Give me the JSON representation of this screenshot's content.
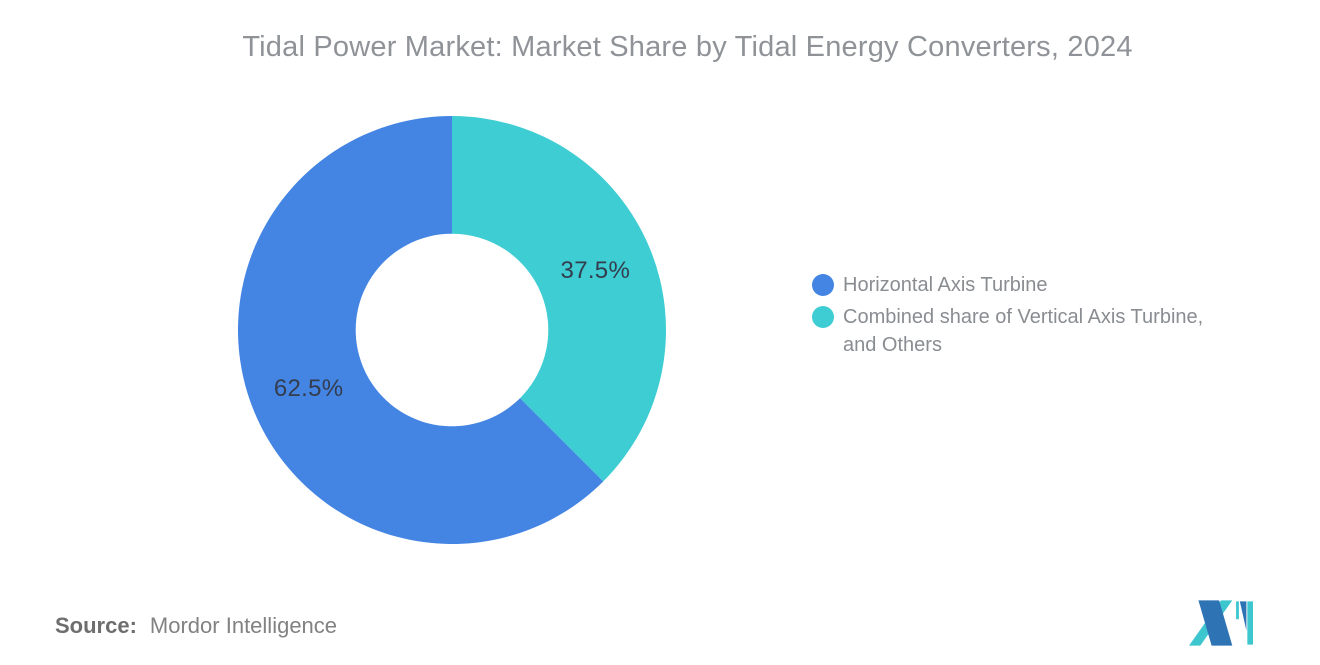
{
  "title": "Tidal Power Market: Market Share by Tidal Energy Converters, 2024",
  "chart_data": {
    "type": "pie",
    "subtype": "donut",
    "title": "Tidal Power Market: Market Share by Tidal Energy Converters, 2024",
    "labels": [
      "Horizontal Axis Turbine",
      "Combined share of Vertical Axis Turbine, and Others"
    ],
    "values": [
      62.5,
      37.5
    ],
    "data_labels": [
      "62.5%",
      "37.5%"
    ],
    "colors": [
      "#4485e4",
      "#3dcdd3"
    ],
    "start_angle_deg": 0,
    "direction": "counterclockwise",
    "inner_radius_ratio": 0.45,
    "legend_position": "right",
    "data_label_color": "#333d4d"
  },
  "legend": {
    "items": [
      {
        "name": "horizontal-axis-turbine",
        "color": "#4485e4",
        "lines": [
          "Horizontal Axis Turbine"
        ]
      },
      {
        "name": "combined-share-vertical-axis-turbine-and-others",
        "color": "#3dcdd3",
        "lines": [
          "Combined share of Vertical Axis Turbine,",
          "and Others"
        ]
      }
    ]
  },
  "source": {
    "label": "Source:",
    "value": "Mordor Intelligence"
  },
  "logo": {
    "name": "Mordor Intelligence logo",
    "blue": "#2e74b5",
    "teal": "#3ec6cf"
  }
}
